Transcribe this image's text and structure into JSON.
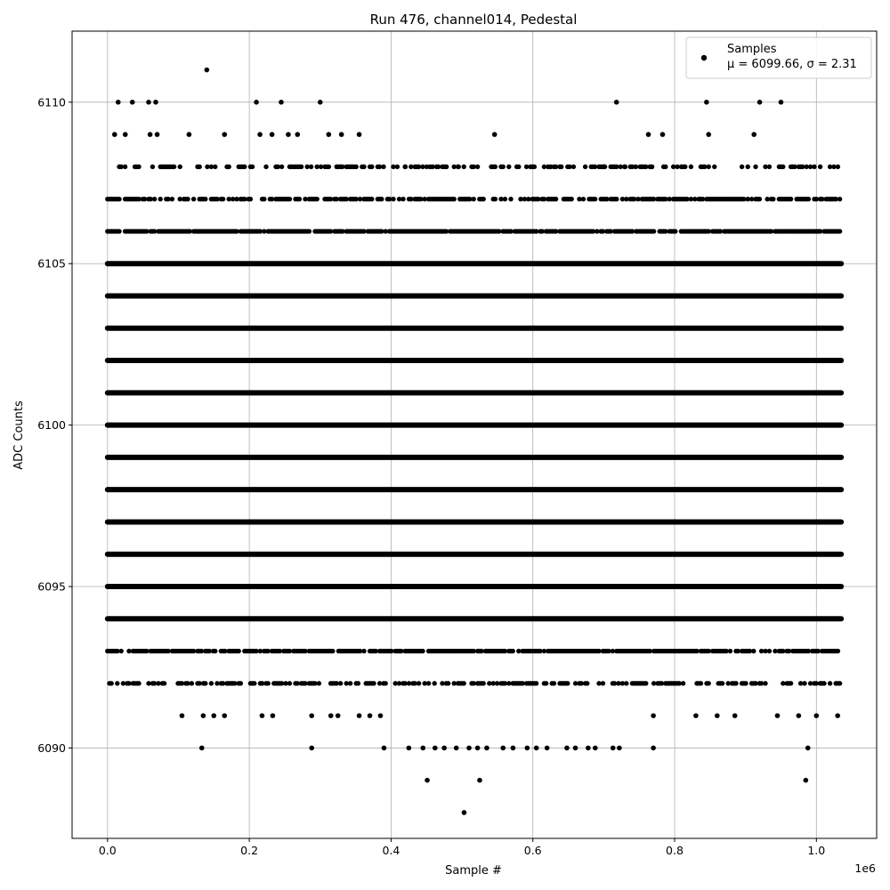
{
  "chart_data": {
    "type": "scatter",
    "title": "Run 476, channel014, Pedestal",
    "xlabel": "Sample #",
    "ylabel": "ADC Counts",
    "x_offset_label": "1e6",
    "xlim": [
      -50000,
      1085000
    ],
    "ylim": [
      6087.2,
      6112.2
    ],
    "x_ticks": [
      0,
      200000,
      400000,
      600000,
      800000,
      1000000
    ],
    "x_tick_labels": [
      "0.0",
      "0.2",
      "0.4",
      "0.6",
      "0.8",
      "1.0"
    ],
    "y_ticks": [
      6090,
      6095,
      6100,
      6105,
      6110
    ],
    "y_tick_labels": [
      "6090",
      "6095",
      "6100",
      "6105",
      "6110"
    ],
    "grid": true,
    "legend_position": "top-right",
    "marker_color": "#000000",
    "n_samples": 1036000,
    "series": [
      {
        "name": "Samples",
        "stats_label": "μ = 6099.66, σ = 2.31",
        "mean": 6099.66,
        "std": 2.31,
        "dense_levels": [
          {
            "y": 6092,
            "x_range": [
              0,
              1035000
            ],
            "density": 0.55
          },
          {
            "y": 6093,
            "x_range": [
              0,
              1035000
            ],
            "density": 0.8
          },
          {
            "y": 6094,
            "x_range": [
              0,
              1035000
            ],
            "density": 1
          },
          {
            "y": 6095,
            "x_range": [
              0,
              1035000
            ],
            "density": 1
          },
          {
            "y": 6096,
            "x_range": [
              0,
              1035000
            ],
            "density": 1
          },
          {
            "y": 6097,
            "x_range": [
              0,
              1035000
            ],
            "density": 1
          },
          {
            "y": 6098,
            "x_range": [
              0,
              1035000
            ],
            "density": 1
          },
          {
            "y": 6099,
            "x_range": [
              0,
              1035000
            ],
            "density": 1
          },
          {
            "y": 6100,
            "x_range": [
              0,
              1035000
            ],
            "density": 1
          },
          {
            "y": 6101,
            "x_range": [
              0,
              1035000
            ],
            "density": 1
          },
          {
            "y": 6102,
            "x_range": [
              0,
              1035000
            ],
            "density": 1
          },
          {
            "y": 6103,
            "x_range": [
              0,
              1035000
            ],
            "density": 1
          },
          {
            "y": 6104,
            "x_range": [
              0,
              1035000
            ],
            "density": 1
          },
          {
            "y": 6105,
            "x_range": [
              0,
              1035000
            ],
            "density": 1
          },
          {
            "y": 6106,
            "x_range": [
              0,
              1035000
            ],
            "density": 0.9
          },
          {
            "y": 6107,
            "x_range": [
              0,
              1035000
            ],
            "density": 0.7
          },
          {
            "y": 6108,
            "x_range": [
              0,
              1035000
            ],
            "density": 0.45
          }
        ],
        "points": [
          [
            140000,
            6111
          ],
          [
            15000,
            6110
          ],
          [
            35000,
            6110
          ],
          [
            58000,
            6110
          ],
          [
            68000,
            6110
          ],
          [
            210000,
            6110
          ],
          [
            245000,
            6110
          ],
          [
            300000,
            6110
          ],
          [
            718000,
            6110
          ],
          [
            845000,
            6110
          ],
          [
            920000,
            6110
          ],
          [
            950000,
            6110
          ],
          [
            10000,
            6109
          ],
          [
            25000,
            6109
          ],
          [
            60000,
            6109
          ],
          [
            70000,
            6109
          ],
          [
            115000,
            6109
          ],
          [
            165000,
            6109
          ],
          [
            215000,
            6109
          ],
          [
            232000,
            6109
          ],
          [
            255000,
            6109
          ],
          [
            268000,
            6109
          ],
          [
            312000,
            6109
          ],
          [
            330000,
            6109
          ],
          [
            355000,
            6109
          ],
          [
            546000,
            6109
          ],
          [
            763000,
            6109
          ],
          [
            783000,
            6109
          ],
          [
            848000,
            6109
          ],
          [
            912000,
            6109
          ],
          [
            420000,
            6108
          ],
          [
            455000,
            6108
          ],
          [
            478000,
            6108
          ],
          [
            495000,
            6108
          ],
          [
            625000,
            6108
          ],
          [
            640000,
            6108
          ],
          [
            700000,
            6108
          ],
          [
            730000,
            6108
          ],
          [
            745000,
            6108
          ],
          [
            768000,
            6108
          ],
          [
            105000,
            6091
          ],
          [
            135000,
            6091
          ],
          [
            150000,
            6091
          ],
          [
            165000,
            6091
          ],
          [
            218000,
            6091
          ],
          [
            233000,
            6091
          ],
          [
            288000,
            6091
          ],
          [
            315000,
            6091
          ],
          [
            325000,
            6091
          ],
          [
            355000,
            6091
          ],
          [
            370000,
            6091
          ],
          [
            385000,
            6091
          ],
          [
            770000,
            6091
          ],
          [
            830000,
            6091
          ],
          [
            860000,
            6091
          ],
          [
            885000,
            6091
          ],
          [
            945000,
            6091
          ],
          [
            975000,
            6091
          ],
          [
            1000000,
            6091
          ],
          [
            1030000,
            6091
          ],
          [
            133000,
            6090
          ],
          [
            288000,
            6090
          ],
          [
            390000,
            6090
          ],
          [
            425000,
            6090
          ],
          [
            445000,
            6090
          ],
          [
            462000,
            6090
          ],
          [
            475000,
            6090
          ],
          [
            492000,
            6090
          ],
          [
            510000,
            6090
          ],
          [
            522000,
            6090
          ],
          [
            535000,
            6090
          ],
          [
            558000,
            6090
          ],
          [
            572000,
            6090
          ],
          [
            592000,
            6090
          ],
          [
            605000,
            6090
          ],
          [
            620000,
            6090
          ],
          [
            648000,
            6090
          ],
          [
            660000,
            6090
          ],
          [
            678000,
            6090
          ],
          [
            688000,
            6090
          ],
          [
            713000,
            6090
          ],
          [
            722000,
            6090
          ],
          [
            770000,
            6090
          ],
          [
            988000,
            6090
          ],
          [
            451000,
            6089
          ],
          [
            525000,
            6089
          ],
          [
            985000,
            6089
          ],
          [
            503000,
            6088
          ]
        ]
      }
    ]
  }
}
